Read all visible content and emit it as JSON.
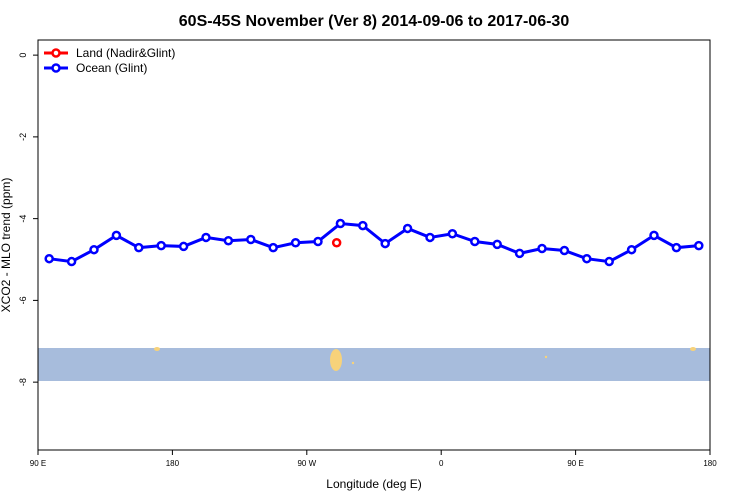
{
  "chart_data": {
    "type": "line",
    "title": "60S-45S November (Ver 8)   2014-09-06 to 2017-06-30",
    "x_label": "Longitude (deg E)",
    "y_label": "XCO2 - MLO trend (ppm)",
    "xlim": [
      90,
      540
    ],
    "xticks": [
      {
        "value": 90,
        "label": "90 E"
      },
      {
        "value": 180,
        "label": "180"
      },
      {
        "value": 270,
        "label": "90 W"
      },
      {
        "value": 360,
        "label": "0"
      },
      {
        "value": 450,
        "label": "90 E"
      },
      {
        "value": 540,
        "label": "180"
      }
    ],
    "ylim": [
      -9.66,
      0.37
    ],
    "yticks": [
      0,
      -2,
      -4,
      -6,
      -8
    ],
    "legend": "top-left",
    "series": [
      {
        "name": "Land (Nadir&Glint)",
        "color": "#ff0000",
        "x": [
          290
        ],
        "values": [
          -4.59
        ]
      },
      {
        "name": "Ocean (Glint)",
        "color": "#0000ff",
        "x": [
          97.5,
          112.5,
          127.5,
          142.5,
          157.5,
          172.5,
          187.5,
          202.5,
          217.5,
          232.5,
          247.5,
          262.5,
          277.5,
          292.5,
          307.5,
          322.5,
          337.5,
          352.5,
          367.5,
          382.5,
          397.5,
          412.5,
          427.5,
          442.5,
          457.5,
          472.5,
          487.5,
          502.5,
          517.5,
          532.5
        ],
        "values": [
          -4.98,
          -5.05,
          -4.76,
          -4.41,
          -4.71,
          -4.66,
          -4.68,
          -4.46,
          -4.54,
          -4.51,
          -4.71,
          -4.59,
          -4.56,
          -4.12,
          -4.17,
          -4.61,
          -4.24,
          -4.46,
          -4.37,
          -4.56,
          -4.63,
          -4.85,
          -4.73,
          -4.78,
          -4.98,
          -5.05,
          -4.76,
          -4.41,
          -4.71,
          -4.66
        ]
      }
    ]
  }
}
